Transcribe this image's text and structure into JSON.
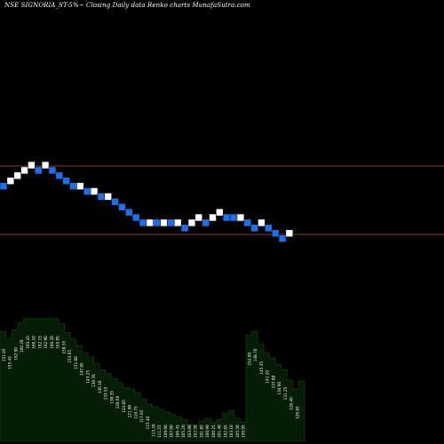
{
  "title": "NSE SIGNORIA_ST-5%~  Closing Daily data  Renko  charts MunafaSutra.com",
  "colors": {
    "background": "#000000",
    "up_brick": "#ffffff",
    "down_brick": "#1e6fe8",
    "brick_border": "#0a0a0a",
    "reference_line": "#8b3a1e",
    "volume_fill": "#051c05",
    "volume_line": "#0f3a0f",
    "volume_label": "#ffffff"
  },
  "chart_data": {
    "type": "renko",
    "grid": false,
    "reference_lines_rel": [
      0.0,
      1.0
    ],
    "bricks": [
      {
        "dir": "down",
        "level": -4
      },
      {
        "dir": "up",
        "level": -3
      },
      {
        "dir": "up",
        "level": -2
      },
      {
        "dir": "up",
        "level": -1
      },
      {
        "dir": "up",
        "level": 0
      },
      {
        "dir": "down",
        "level": -1
      },
      {
        "dir": "up",
        "level": 0
      },
      {
        "dir": "down",
        "level": -1
      },
      {
        "dir": "down",
        "level": -2
      },
      {
        "dir": "down",
        "level": -3
      },
      {
        "dir": "down",
        "level": -4
      },
      {
        "dir": "up",
        "level": -4
      },
      {
        "dir": "down",
        "level": -5
      },
      {
        "dir": "up",
        "level": -5
      },
      {
        "dir": "down",
        "level": -6
      },
      {
        "dir": "up",
        "level": -6
      },
      {
        "dir": "down",
        "level": -7
      },
      {
        "dir": "down",
        "level": -8
      },
      {
        "dir": "down",
        "level": -9
      },
      {
        "dir": "down",
        "level": -10
      },
      {
        "dir": "down",
        "level": -11
      },
      {
        "dir": "up",
        "level": -11
      },
      {
        "dir": "down",
        "level": -11
      },
      {
        "dir": "up",
        "level": -11
      },
      {
        "dir": "down",
        "level": -11
      },
      {
        "dir": "up",
        "level": -11
      },
      {
        "dir": "down",
        "level": -12
      },
      {
        "dir": "up",
        "level": -11
      },
      {
        "dir": "up",
        "level": -10
      },
      {
        "dir": "down",
        "level": -11
      },
      {
        "dir": "up",
        "level": -10
      },
      {
        "dir": "up",
        "level": -9
      },
      {
        "dir": "down",
        "level": -10
      },
      {
        "dir": "down",
        "level": -10
      },
      {
        "dir": "up",
        "level": -10
      },
      {
        "dir": "down",
        "level": -11
      },
      {
        "dir": "down",
        "level": -12
      },
      {
        "dir": "up",
        "level": -11
      },
      {
        "dir": "down",
        "level": -12
      },
      {
        "dir": "down",
        "level": -13
      },
      {
        "dir": "down",
        "level": -14
      },
      {
        "dir": "up",
        "level": -13
      }
    ],
    "volume_labels": [
      "151.05",
      "155.45",
      "162.90",
      "160.20",
      "163.45",
      "166.10",
      "162.15",
      "162.90",
      "160.20",
      "165.95",
      "158.35",
      "153.65",
      "151.00",
      "147.85",
      "143.25",
      "139.70",
      "136.10",
      "133.55",
      "130.35",
      "128.60",
      "124.85",
      "121.90",
      "119.75",
      "117.05",
      "115.40",
      "113.20",
      "111.25",
      "109.60",
      "107.80",
      "106.45",
      "105.20",
      "103.90",
      "102.50",
      "101.85",
      "100.90",
      "100.25",
      "101.40",
      "102.85",
      "103.10",
      "105.50",
      "150.95",
      "152.60",
      "148.70",
      "145.35",
      "141.20",
      "137.80",
      "134.60",
      "131.25",
      "128.40",
      "126.85"
    ],
    "volume_levels": [
      0.86,
      0.8,
      0.87,
      0.93,
      0.96,
      0.96,
      0.96,
      0.96,
      0.96,
      0.96,
      0.92,
      0.85,
      0.8,
      0.75,
      0.69,
      0.66,
      0.61,
      0.56,
      0.53,
      0.49,
      0.46,
      0.42,
      0.41,
      0.38,
      0.33,
      0.29,
      0.27,
      0.25,
      0.23,
      0.21,
      0.19,
      0.17,
      0.13,
      0.12,
      0.16,
      0.18,
      0.15,
      0.17,
      0.22,
      0.24,
      0.18,
      0.15,
      0.83,
      0.86,
      0.76,
      0.69,
      0.65,
      0.6,
      0.56,
      0.48,
      0.41,
      0.47
    ]
  }
}
